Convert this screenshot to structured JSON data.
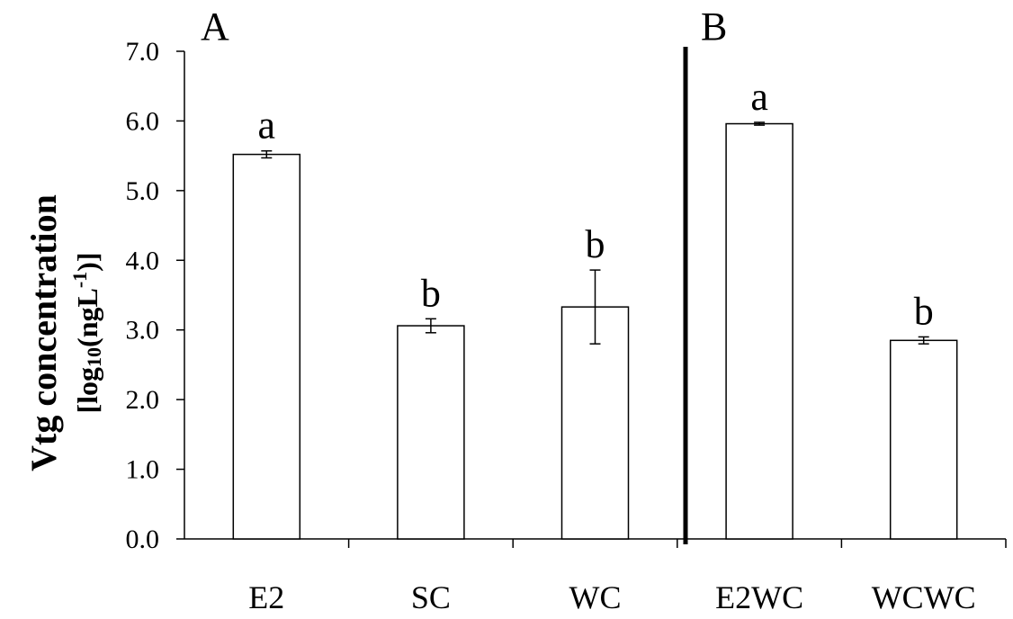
{
  "chart_data": {
    "type": "bar",
    "ylabel_line1": "Vtg concentration",
    "ylabel_line2_pre": "[log",
    "ylabel_sub": "10",
    "ylabel_line2_mid": "(ngL",
    "ylabel_sup": "-1",
    "ylabel_line2_post": ")]",
    "ylim": [
      0,
      7
    ],
    "yticks": [
      {
        "value": 0,
        "label": "0.0"
      },
      {
        "value": 1,
        "label": "1.0"
      },
      {
        "value": 2,
        "label": "2.0"
      },
      {
        "value": 3,
        "label": "3.0"
      },
      {
        "value": 4,
        "label": "4.0"
      },
      {
        "value": 5,
        "label": "5.0"
      },
      {
        "value": 6,
        "label": "6.0"
      },
      {
        "value": 7,
        "label": "7.0"
      }
    ],
    "categories": [
      "E2",
      "SC",
      "WC",
      "E2WC",
      "WCWC"
    ],
    "values": [
      5.52,
      3.06,
      3.33,
      5.96,
      2.85
    ],
    "errors": [
      0.05,
      0.1,
      0.53,
      0.02,
      0.05
    ],
    "significance": [
      "a",
      "b",
      "b",
      "a",
      "b"
    ],
    "panels": [
      "A",
      "B"
    ],
    "grid": false,
    "bar_fill": "#ffffff",
    "bar_stroke": "#000000"
  }
}
